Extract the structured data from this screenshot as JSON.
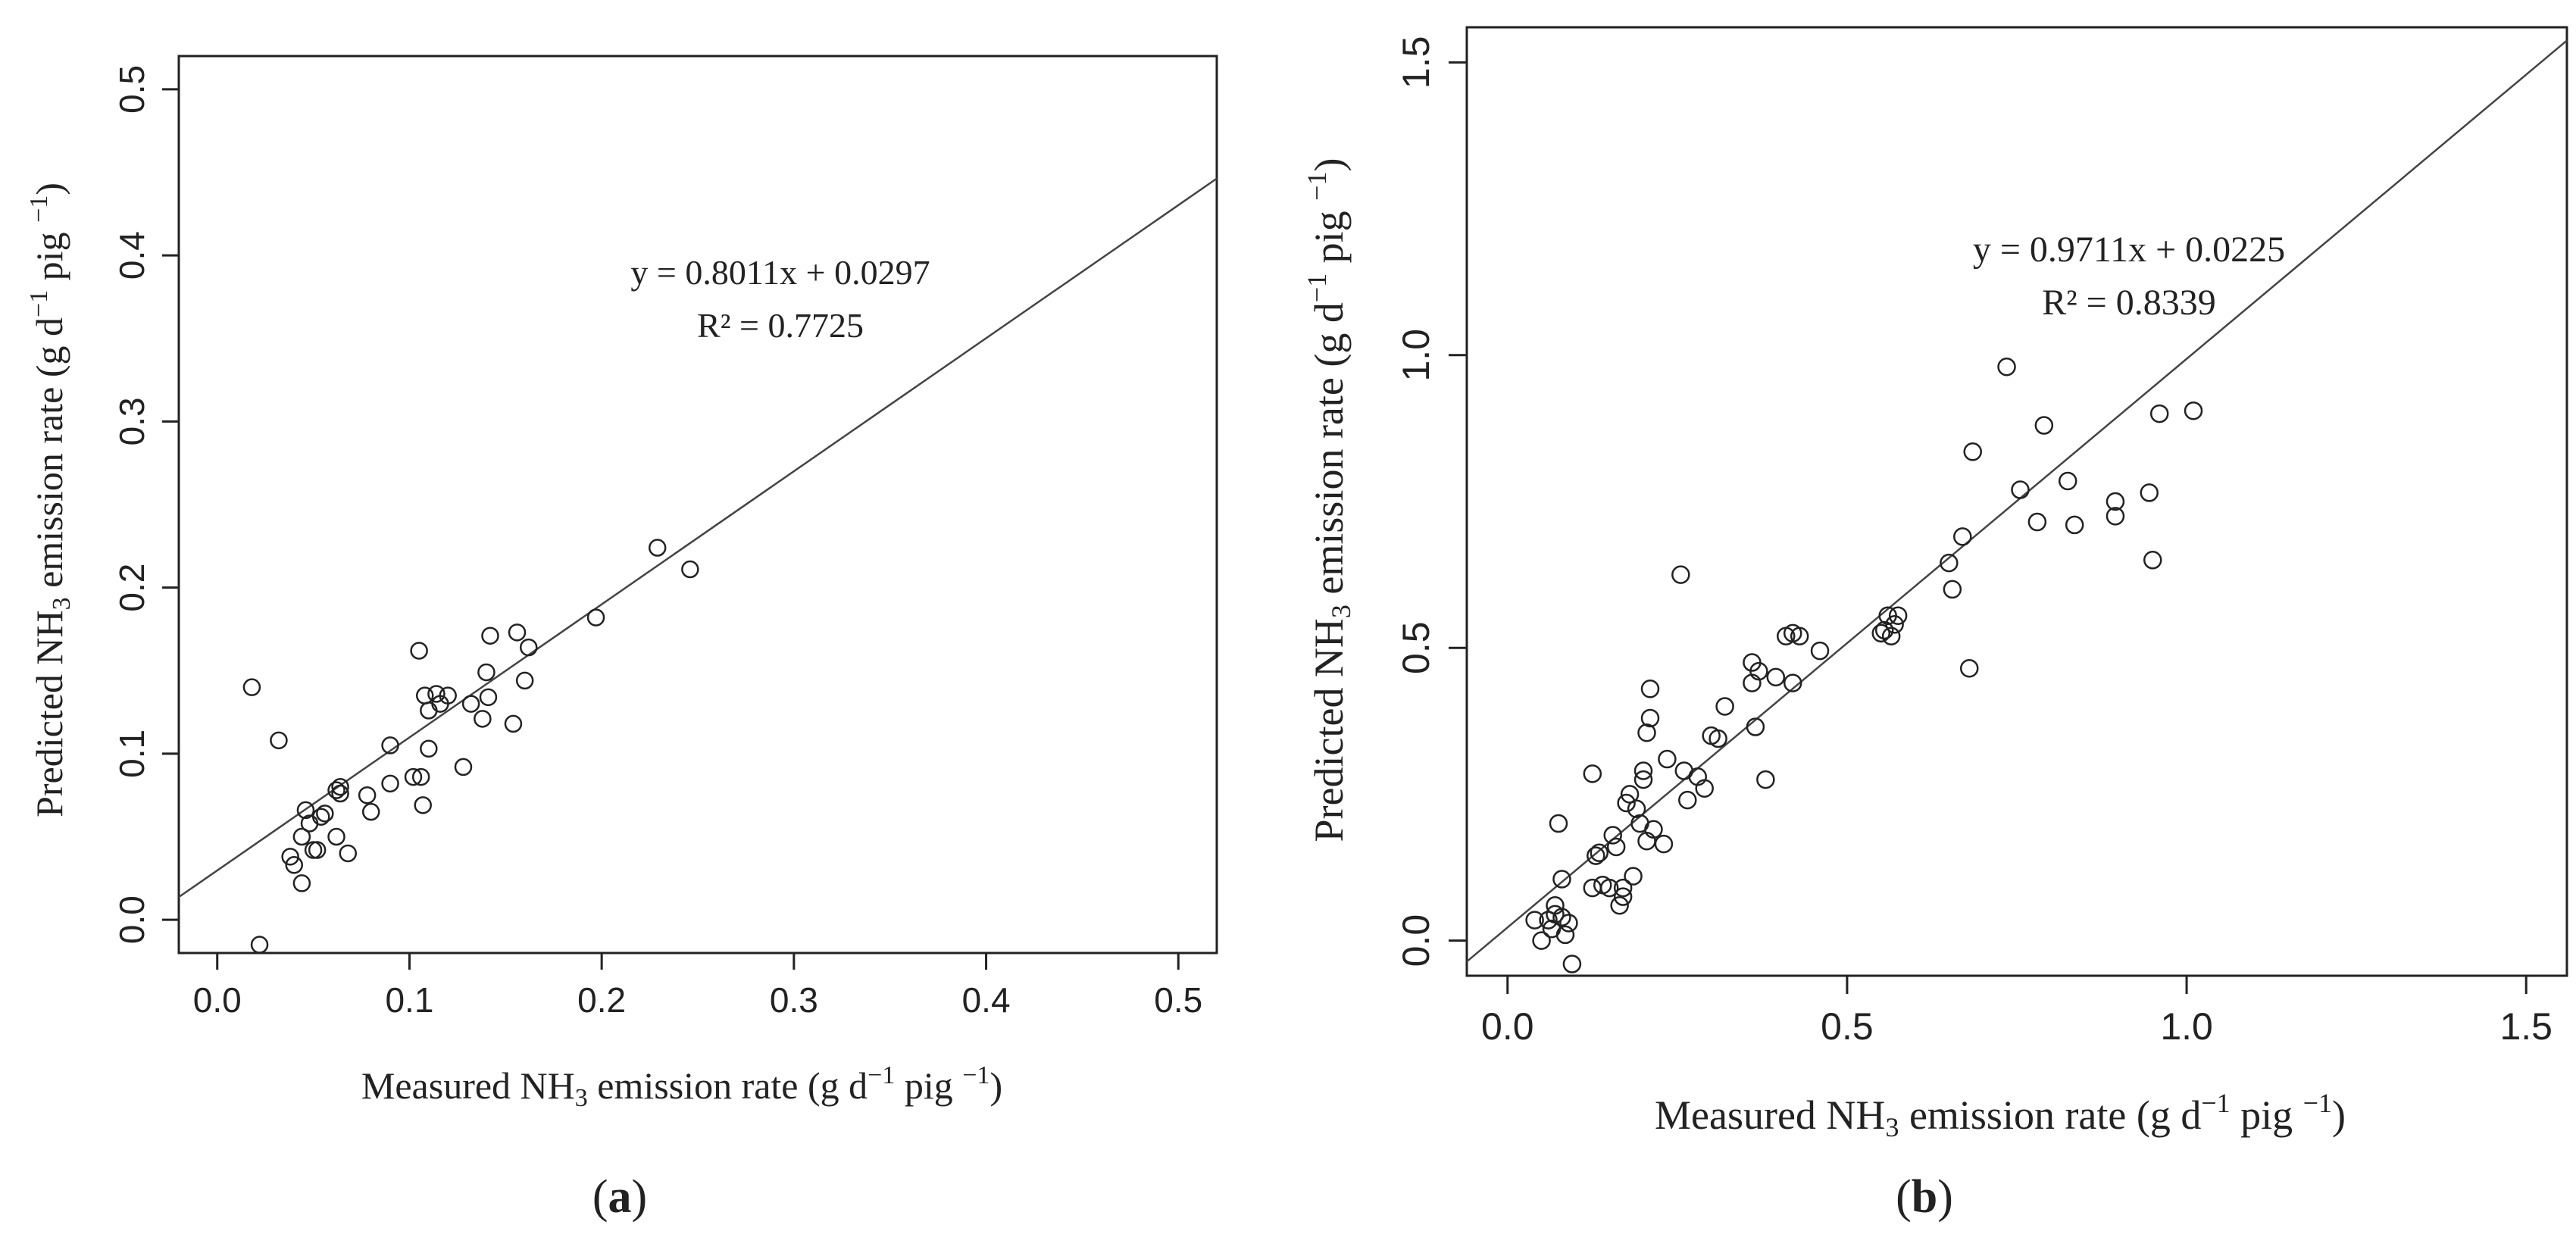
{
  "chart_data": [
    {
      "type": "scatter",
      "panel_label": "a",
      "xlabel": "Measured NH3 emission rate (g d−1 pig −1)",
      "ylabel": "Predicted NH3 emission rate (g d−1 pig −1)",
      "xlabel_parts": {
        "pre": "Measured NH",
        "sub": "3",
        "post": " emission rate (g d",
        "sup1": "−1",
        "mid": " pig ",
        "sup2": "−1",
        "end": ")"
      },
      "ylabel_parts": {
        "pre": "Predicted NH",
        "sub": "3",
        "post": " emission rate (g d",
        "sup1": "−1",
        "mid": " pig ",
        "sup2": "−1",
        "end": ")"
      },
      "xlim": [
        -0.02,
        0.52
      ],
      "ylim": [
        -0.02,
        0.52
      ],
      "xticks": [
        0.0,
        0.1,
        0.2,
        0.3,
        0.4,
        0.5
      ],
      "yticks": [
        0.0,
        0.1,
        0.2,
        0.3,
        0.4,
        0.5
      ],
      "xtick_labels": [
        "0.0",
        "0.1",
        "0.2",
        "0.3",
        "0.4",
        "0.5"
      ],
      "ytick_labels": [
        "0.0",
        "0.1",
        "0.2",
        "0.3",
        "0.4",
        "0.5"
      ],
      "fit": {
        "slope": 0.8011,
        "intercept": 0.0297
      },
      "equation": "y = 0.8011x + 0.0297",
      "r2": "R² = 0.7725",
      "points": [
        [
          0.018,
          0.14
        ],
        [
          0.022,
          -0.015
        ],
        [
          0.032,
          0.108
        ],
        [
          0.038,
          0.038
        ],
        [
          0.04,
          0.033
        ],
        [
          0.044,
          0.022
        ],
        [
          0.044,
          0.05
        ],
        [
          0.046,
          0.066
        ],
        [
          0.048,
          0.058
        ],
        [
          0.05,
          0.042
        ],
        [
          0.052,
          0.042
        ],
        [
          0.054,
          0.062
        ],
        [
          0.056,
          0.064
        ],
        [
          0.062,
          0.05
        ],
        [
          0.062,
          0.078
        ],
        [
          0.064,
          0.08
        ],
        [
          0.064,
          0.076
        ],
        [
          0.068,
          0.04
        ],
        [
          0.078,
          0.075
        ],
        [
          0.08,
          0.065
        ],
        [
          0.09,
          0.105
        ],
        [
          0.09,
          0.082
        ],
        [
          0.102,
          0.086
        ],
        [
          0.105,
          0.162
        ],
        [
          0.106,
          0.086
        ],
        [
          0.107,
          0.069
        ],
        [
          0.108,
          0.135
        ],
        [
          0.11,
          0.103
        ],
        [
          0.11,
          0.126
        ],
        [
          0.114,
          0.136
        ],
        [
          0.116,
          0.13
        ],
        [
          0.12,
          0.135
        ],
        [
          0.128,
          0.092
        ],
        [
          0.132,
          0.13
        ],
        [
          0.138,
          0.121
        ],
        [
          0.14,
          0.149
        ],
        [
          0.141,
          0.134
        ],
        [
          0.142,
          0.171
        ],
        [
          0.154,
          0.118
        ],
        [
          0.156,
          0.173
        ],
        [
          0.16,
          0.144
        ],
        [
          0.162,
          0.164
        ],
        [
          0.197,
          0.182
        ],
        [
          0.229,
          0.224
        ],
        [
          0.246,
          0.211
        ]
      ]
    },
    {
      "type": "scatter",
      "panel_label": "b",
      "xlabel": "Measured NH3 emission rate (g d−1 pig −1)",
      "ylabel": "Predicted NH3 emission rate (g d−1 pig −1)",
      "xlabel_parts": {
        "pre": "Measured NH",
        "sub": "3",
        "post": " emission rate (g d",
        "sup1": "−1",
        "mid": " pig ",
        "sup2": "−1",
        "end": ")"
      },
      "ylabel_parts": {
        "pre": "Predicted NH",
        "sub": "3",
        "post": " emission rate (g d",
        "sup1": "−1",
        "mid": " pig ",
        "sup2": "−1",
        "end": ")"
      },
      "xlim": [
        -0.06,
        1.56
      ],
      "ylim": [
        -0.06,
        1.56
      ],
      "xticks": [
        0.0,
        0.5,
        1.0,
        1.5
      ],
      "yticks": [
        0.0,
        0.5,
        1.0,
        1.5
      ],
      "xtick_labels": [
        "0.0",
        "0.5",
        "1.0",
        "1.5"
      ],
      "ytick_labels": [
        "0.0",
        "0.5",
        "1.0",
        "1.5"
      ],
      "fit": {
        "slope": 0.9711,
        "intercept": 0.0225
      },
      "equation": "y = 0.9711x + 0.0225",
      "r2": "R² = 0.8339",
      "points": [
        [
          0.04,
          0.035
        ],
        [
          0.05,
          0.0
        ],
        [
          0.06,
          0.035
        ],
        [
          0.065,
          0.02
        ],
        [
          0.07,
          0.06
        ],
        [
          0.07,
          0.045
        ],
        [
          0.075,
          0.2
        ],
        [
          0.08,
          0.105
        ],
        [
          0.08,
          0.04
        ],
        [
          0.085,
          0.01
        ],
        [
          0.09,
          0.03
        ],
        [
          0.095,
          -0.04
        ],
        [
          0.125,
          0.285
        ],
        [
          0.125,
          0.09
        ],
        [
          0.13,
          0.145
        ],
        [
          0.135,
          0.15
        ],
        [
          0.14,
          0.095
        ],
        [
          0.15,
          0.09
        ],
        [
          0.155,
          0.18
        ],
        [
          0.16,
          0.16
        ],
        [
          0.165,
          0.06
        ],
        [
          0.17,
          0.075
        ],
        [
          0.17,
          0.09
        ],
        [
          0.175,
          0.235
        ],
        [
          0.18,
          0.25
        ],
        [
          0.185,
          0.11
        ],
        [
          0.19,
          0.225
        ],
        [
          0.195,
          0.2
        ],
        [
          0.2,
          0.29
        ],
        [
          0.2,
          0.275
        ],
        [
          0.205,
          0.17
        ],
        [
          0.205,
          0.355
        ],
        [
          0.21,
          0.38
        ],
        [
          0.21,
          0.43
        ],
        [
          0.215,
          0.19
        ],
        [
          0.23,
          0.165
        ],
        [
          0.235,
          0.31
        ],
        [
          0.255,
          0.625
        ],
        [
          0.26,
          0.29
        ],
        [
          0.265,
          0.24
        ],
        [
          0.28,
          0.28
        ],
        [
          0.29,
          0.26
        ],
        [
          0.3,
          0.35
        ],
        [
          0.31,
          0.345
        ],
        [
          0.32,
          0.4
        ],
        [
          0.36,
          0.44
        ],
        [
          0.36,
          0.475
        ],
        [
          0.365,
          0.365
        ],
        [
          0.37,
          0.46
        ],
        [
          0.38,
          0.275
        ],
        [
          0.395,
          0.45
        ],
        [
          0.41,
          0.52
        ],
        [
          0.42,
          0.525
        ],
        [
          0.42,
          0.44
        ],
        [
          0.43,
          0.52
        ],
        [
          0.46,
          0.495
        ],
        [
          0.55,
          0.525
        ],
        [
          0.555,
          0.53
        ],
        [
          0.56,
          0.555
        ],
        [
          0.565,
          0.52
        ],
        [
          0.57,
          0.54
        ],
        [
          0.575,
          0.555
        ],
        [
          0.65,
          0.645
        ],
        [
          0.655,
          0.6
        ],
        [
          0.67,
          0.69
        ],
        [
          0.68,
          0.465
        ],
        [
          0.685,
          0.835
        ],
        [
          0.735,
          0.98
        ],
        [
          0.755,
          0.77
        ],
        [
          0.78,
          0.715
        ],
        [
          0.79,
          0.88
        ],
        [
          0.825,
          0.785
        ],
        [
          0.835,
          0.71
        ],
        [
          0.895,
          0.75
        ],
        [
          0.895,
          0.725
        ],
        [
          0.945,
          0.765
        ],
        [
          0.95,
          0.65
        ],
        [
          0.96,
          0.9
        ],
        [
          1.01,
          0.905
        ]
      ]
    }
  ]
}
